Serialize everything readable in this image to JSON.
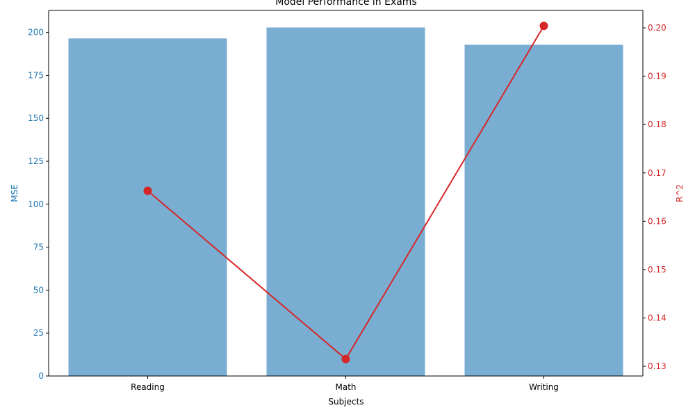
{
  "chart_data": {
    "type": "bar",
    "title": "Model Performance in Exams",
    "xlabel": "Subjects",
    "categories": [
      "Reading",
      "Math",
      "Writing"
    ],
    "series": [
      {
        "name": "MSE",
        "kind": "bar",
        "axis": "left",
        "color": "#1f77b4",
        "values": [
          196.5,
          202.9,
          192.8
        ]
      },
      {
        "name": "R^2",
        "kind": "line",
        "axis": "right",
        "color": "#d62728",
        "values": [
          0.1663,
          0.1315,
          0.2004
        ]
      }
    ],
    "ylabel": "MSE",
    "ylabel_right": "R^2",
    "ylim": [
      0,
      212.8
    ],
    "ylim_right": [
      0.128,
      0.2036
    ],
    "yticks": [
      0,
      25,
      50,
      75,
      100,
      125,
      150,
      175,
      200
    ],
    "yticks_right": [
      0.13,
      0.14,
      0.15,
      0.16,
      0.17,
      0.18,
      0.19,
      0.2
    ],
    "yticks_right_labels": [
      "0.13",
      "0.14",
      "0.15",
      "0.16",
      "0.17",
      "0.18",
      "0.19",
      "0.20"
    ],
    "grid": false,
    "left_axis_color": "#1f77b4",
    "right_axis_color": "#d62728"
  }
}
